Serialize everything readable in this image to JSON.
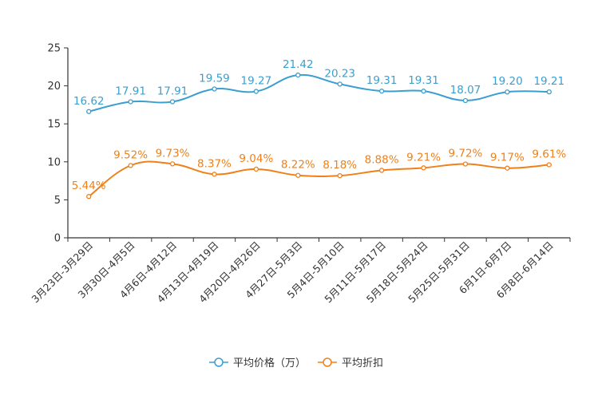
{
  "chart_data": {
    "type": "line",
    "categories": [
      "3月23日-3月29日",
      "3月30日-4月5日",
      "4月6日-4月12日",
      "4月13日-4月19日",
      "4月20日-4月26日",
      "4月27日-5月3日",
      "5月4日-5月10日",
      "5月11日-5月17日",
      "5月18日-5月24日",
      "5月25日-5月31日",
      "6月1日-6月7日",
      "6月8日-6月14日"
    ],
    "series": [
      {
        "name": "平均价格（万）",
        "color": "#3a9fd0",
        "values": [
          16.62,
          17.91,
          17.91,
          19.59,
          19.27,
          21.42,
          20.23,
          19.31,
          19.31,
          18.07,
          19.2,
          19.21
        ],
        "labels": [
          "16.62",
          "17.91",
          "17.91",
          "19.59",
          "19.27",
          "21.42",
          "20.23",
          "19.31",
          "19.31",
          "18.07",
          "19.20",
          "19.21"
        ]
      },
      {
        "name": "平均折扣",
        "color": "#f08019",
        "values": [
          5.44,
          9.52,
          9.73,
          8.37,
          9.04,
          8.22,
          8.18,
          8.88,
          9.21,
          9.72,
          9.17,
          9.61
        ],
        "labels": [
          "5.44%",
          "9.52%",
          "9.73%",
          "8.37%",
          "9.04%",
          "8.22%",
          "8.18%",
          "8.88%",
          "9.21%",
          "9.72%",
          "9.17%",
          "9.61%"
        ]
      }
    ],
    "ylim": [
      0,
      25
    ],
    "yticks": [
      "0",
      "5",
      "10",
      "15",
      "20",
      "25"
    ],
    "ytick_values": [
      0,
      5,
      10,
      15,
      20,
      25
    ],
    "title": "",
    "xlabel": "",
    "ylabel": "",
    "legend_position": "bottom"
  }
}
